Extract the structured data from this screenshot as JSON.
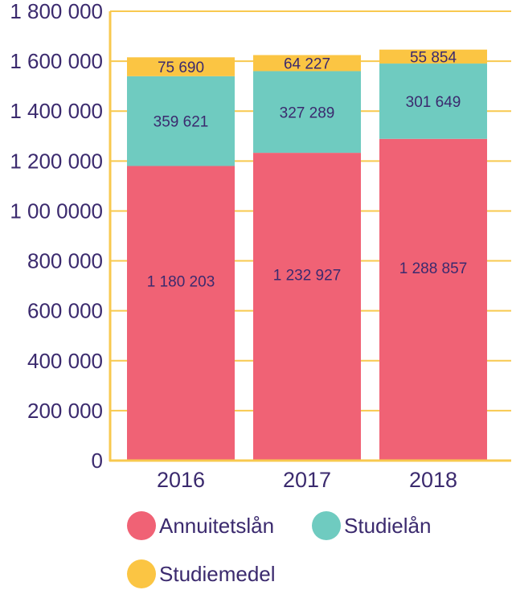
{
  "chart_data": {
    "type": "bar",
    "stacked": true,
    "categories": [
      "2016",
      "2017",
      "2018"
    ],
    "series": [
      {
        "name": "Annuitetslån",
        "color": "#f06275",
        "values": [
          1180203,
          1232927,
          1288857
        ],
        "labels": [
          "1 180 203",
          "1 232 927",
          "1 288 857"
        ]
      },
      {
        "name": "Studielån",
        "color": "#6fcbc0",
        "values": [
          359621,
          327289,
          301649
        ],
        "labels": [
          "359 621",
          "327 289",
          "301 649"
        ]
      },
      {
        "name": "Studiemedel",
        "color": "#fbc543",
        "values": [
          75690,
          64227,
          55854
        ],
        "labels": [
          "75 690",
          "64 227",
          "55 854"
        ]
      }
    ],
    "ylim": [
      0,
      1800000
    ],
    "yticks": [
      0,
      200000,
      400000,
      600000,
      800000,
      1000000,
      1200000,
      1400000,
      1600000,
      1800000
    ],
    "ytick_labels": [
      "0",
      "200 000",
      "400 000",
      "600 000",
      "800 000",
      "1 00 0000",
      "1 200 000",
      "1 400 000",
      "1 600 000",
      "1 800 000"
    ],
    "grid": true,
    "legend_position": "bottom",
    "colors": {
      "grid": "#f8c94f",
      "axis": "#f8c94f",
      "text": "#3b2a6e"
    }
  }
}
